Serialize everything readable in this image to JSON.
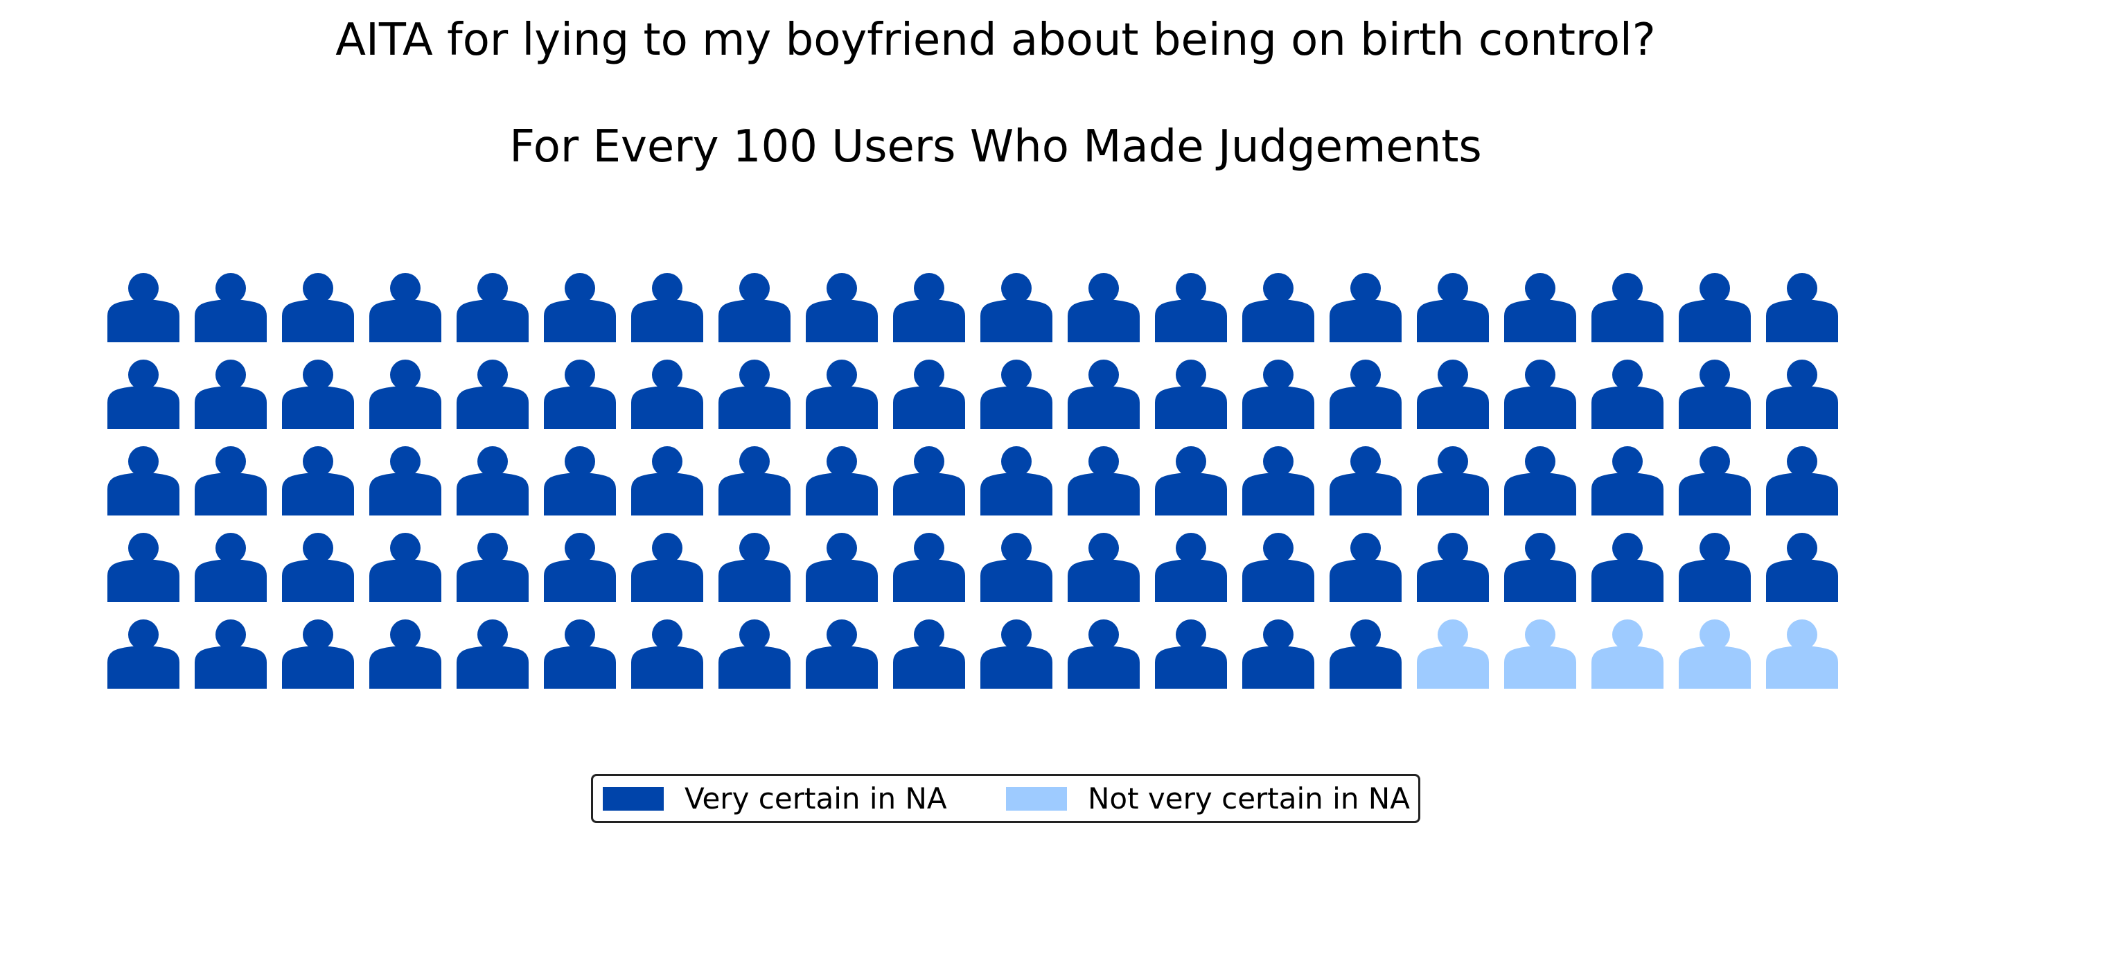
{
  "chart_data": {
    "type": "waffle",
    "title": "AITA for lying to my boyfriend about being on birth control?",
    "subtitle": "For Every 100 Users Who Made Judgements",
    "total": 100,
    "rows": 5,
    "columns": 20,
    "icon": "person-icon",
    "series": [
      {
        "name": "Very certain in NA",
        "value": 95,
        "color": "#0044AA"
      },
      {
        "name": "Not very certain in NA",
        "value": 5,
        "color": "#9ECBFF"
      }
    ],
    "legend_position": "bottom-center"
  }
}
